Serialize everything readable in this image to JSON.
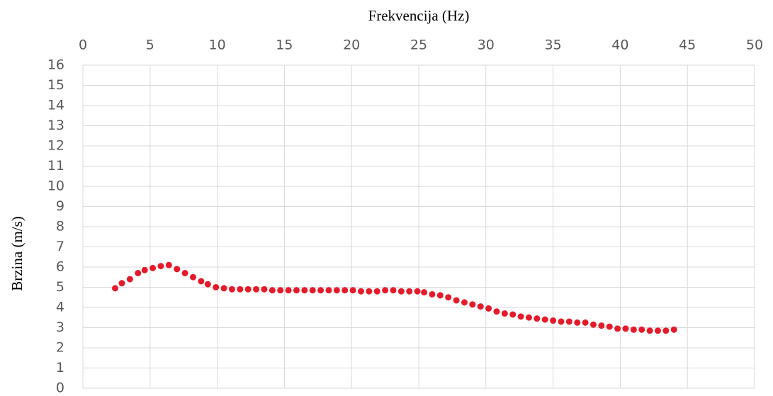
{
  "chart_data": {
    "type": "scatter",
    "x_label": "Frekvencija (Hz)",
    "y_label": "Brzina (m/s)",
    "x_axis_position": "top",
    "grid": true,
    "color": "#e31b2a",
    "xlim": [
      0,
      50
    ],
    "xticks": [
      0,
      5,
      10,
      15,
      20,
      25,
      30,
      35,
      40,
      45,
      50
    ],
    "ylim": [
      0,
      16
    ],
    "yticks": [
      0,
      1,
      2,
      3,
      4,
      5,
      6,
      7,
      8,
      9,
      10,
      11,
      12,
      13,
      14,
      15,
      16
    ],
    "x": [
      2.4,
      2.9,
      3.5,
      4.1,
      4.6,
      5.2,
      5.8,
      6.4,
      7.0,
      7.6,
      8.2,
      8.8,
      9.3,
      9.9,
      10.5,
      11.1,
      11.7,
      12.3,
      12.9,
      13.5,
      14.1,
      14.7,
      15.3,
      15.9,
      16.5,
      17.1,
      17.7,
      18.3,
      18.9,
      19.5,
      20.1,
      20.7,
      21.3,
      21.9,
      22.5,
      23.1,
      23.7,
      24.3,
      24.9,
      25.4,
      26.0,
      26.6,
      27.2,
      27.8,
      28.4,
      29.0,
      29.6,
      30.2,
      30.8,
      31.4,
      32.0,
      32.6,
      33.2,
      33.8,
      34.4,
      35.0,
      35.6,
      36.2,
      36.8,
      37.4,
      38.0,
      38.6,
      39.2,
      39.8,
      40.4,
      41.0,
      41.6,
      42.2,
      42.8,
      43.4,
      44.0
    ],
    "values": [
      4.95,
      5.2,
      5.4,
      5.7,
      5.85,
      5.95,
      6.05,
      6.1,
      5.9,
      5.7,
      5.5,
      5.3,
      5.15,
      5.0,
      4.95,
      4.9,
      4.9,
      4.9,
      4.9,
      4.9,
      4.85,
      4.85,
      4.85,
      4.85,
      4.85,
      4.85,
      4.85,
      4.85,
      4.85,
      4.85,
      4.85,
      4.8,
      4.8,
      4.8,
      4.85,
      4.85,
      4.8,
      4.8,
      4.8,
      4.75,
      4.65,
      4.6,
      4.5,
      4.35,
      4.25,
      4.15,
      4.05,
      3.95,
      3.8,
      3.7,
      3.65,
      3.55,
      3.5,
      3.45,
      3.4,
      3.35,
      3.3,
      3.3,
      3.25,
      3.25,
      3.15,
      3.1,
      3.05,
      2.95,
      2.95,
      2.9,
      2.9,
      2.85,
      2.85,
      2.85,
      2.9
    ]
  }
}
